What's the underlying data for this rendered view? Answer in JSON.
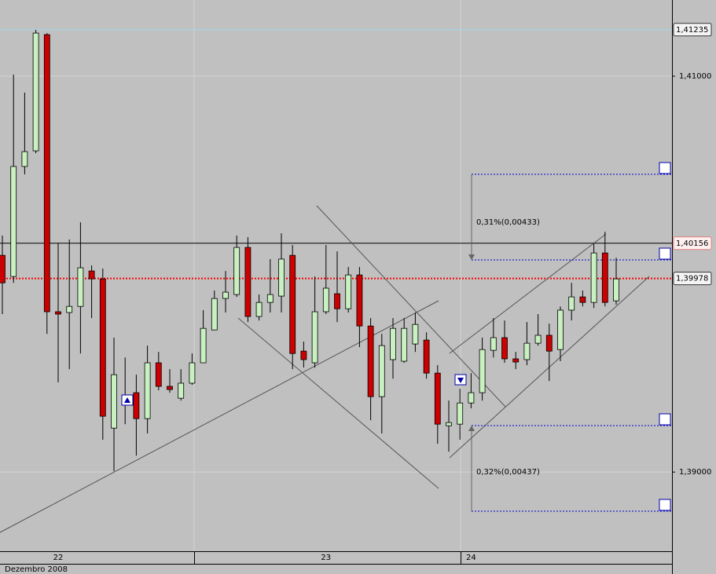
{
  "chart_data": {
    "type": "candlestick",
    "categories": [
      null,
      null,
      null,
      null,
      null,
      "22",
      null,
      null,
      null,
      null,
      null,
      null,
      null,
      null,
      null,
      null,
      null,
      null,
      null,
      null,
      null,
      null,
      null,
      null,
      null,
      null,
      null,
      null,
      null,
      "23",
      null,
      null,
      null,
      null,
      null,
      null,
      null,
      null,
      null,
      null,
      null,
      null,
      "24",
      null,
      null,
      null,
      null,
      null,
      null,
      null,
      null,
      null,
      null,
      null,
      null,
      null
    ],
    "open": [
      1.40095,
      1.39988,
      1.40544,
      1.40623,
      1.4121,
      1.3981,
      1.39806,
      1.39837,
      1.40016,
      1.39976,
      1.39222,
      1.39353,
      1.39401,
      1.3927,
      1.39552,
      1.39433,
      1.39373,
      1.39449,
      1.39552,
      1.39718,
      1.39877,
      1.39897,
      1.40135,
      1.39786,
      1.39857,
      1.39889,
      1.40095,
      1.39611,
      1.39552,
      1.3981,
      1.39901,
      1.39825,
      1.39996,
      1.39738,
      1.39381,
      1.39568,
      1.3956,
      1.39647,
      1.39667,
      1.395,
      1.39234,
      1.39242,
      1.39349,
      1.39401,
      1.39615,
      1.39679,
      1.39572,
      1.39568,
      1.39651,
      1.39691,
      1.39619,
      1.39818,
      1.39885,
      1.39857,
      1.40107,
      1.39865
    ],
    "high": [
      1.40195,
      1.41008,
      1.40917,
      1.41234,
      1.41218,
      1.40155,
      1.40175,
      1.40262,
      1.40044,
      1.40028,
      1.39679,
      1.39579,
      1.39492,
      1.39639,
      1.39607,
      1.3952,
      1.3952,
      1.39599,
      1.39818,
      1.39917,
      1.40016,
      1.40195,
      1.40187,
      1.39897,
      1.40076,
      1.40206,
      1.40147,
      1.39659,
      1.39988,
      1.40147,
      1.40115,
      1.40036,
      1.40036,
      1.39778,
      1.39698,
      1.39778,
      1.39778,
      1.39806,
      1.39706,
      1.3954,
      1.39361,
      1.39421,
      1.395,
      1.39679,
      1.39778,
      1.39766,
      1.39607,
      1.39758,
      1.39798,
      1.3975,
      1.39837,
      1.39956,
      1.39917,
      1.40155,
      1.40214,
      1.40083
    ],
    "low": [
      1.39798,
      1.39956,
      1.40504,
      1.40611,
      1.39698,
      1.39453,
      1.3952,
      1.39599,
      1.39778,
      1.39163,
      1.39004,
      1.39242,
      1.39083,
      1.39195,
      1.39413,
      1.39401,
      1.39361,
      1.39441,
      1.39552,
      1.39718,
      1.39806,
      1.39885,
      1.39758,
      1.39766,
      1.39806,
      1.39806,
      1.3952,
      1.39528,
      1.39528,
      1.39798,
      1.39758,
      1.39806,
      1.39631,
      1.39262,
      1.39195,
      1.39472,
      1.39552,
      1.39607,
      1.39472,
      1.39143,
      1.39103,
      1.39163,
      1.39322,
      1.39361,
      1.39579,
      1.39552,
      1.3952,
      1.3954,
      1.39639,
      1.3946,
      1.3956,
      1.39766,
      1.39837,
      1.39829,
      1.39837,
      1.39845
    ],
    "close": [
      1.39956,
      1.40544,
      1.40619,
      1.41218,
      1.3981,
      1.39798,
      1.39837,
      1.40032,
      1.39976,
      1.39282,
      1.39492,
      1.39389,
      1.3927,
      1.39552,
      1.39433,
      1.39417,
      1.39449,
      1.39552,
      1.39726,
      1.39877,
      1.39909,
      1.40135,
      1.39786,
      1.39857,
      1.39897,
      1.40076,
      1.39599,
      1.39568,
      1.3981,
      1.39929,
      1.39825,
      1.39996,
      1.39738,
      1.39381,
      1.39639,
      1.39726,
      1.39726,
      1.39746,
      1.395,
      1.39242,
      1.3925,
      1.39349,
      1.39401,
      1.39619,
      1.39679,
      1.39572,
      1.39556,
      1.39651,
      1.39691,
      1.39611,
      1.39818,
      1.39885,
      1.39857,
      1.40107,
      1.39857,
      1.39976
    ],
    "up_color": "#c8f0c0",
    "down_color": "#cc0000",
    "ylim": [
      1.386,
      1.41385
    ],
    "yticks": [
      {
        "value": 1.41,
        "label": "1,41000"
      },
      {
        "value": 1.39,
        "label": "1,39000"
      }
    ],
    "grid": true,
    "price_lines": [
      {
        "value": 1.41235,
        "label": "1,41235",
        "color": "#9fd6ee"
      },
      {
        "value": 1.40156,
        "label": "1,40156",
        "color": "#000000"
      },
      {
        "value": 1.39978,
        "label": "1,39978",
        "color": "#ff0000"
      }
    ],
    "annotations": [
      "0,31%(0,00433)",
      "0,32%(0,00437)"
    ],
    "x_axis_label": "Dezembro 2008"
  }
}
